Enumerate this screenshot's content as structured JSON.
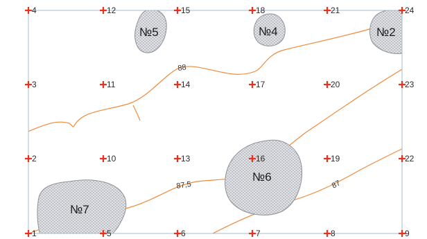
{
  "colors": {
    "background": "#ffffff",
    "frame": "#a9b8c8",
    "contour": "#f08a3c",
    "zone_fill": "#b9bcc2",
    "zone_stroke": "#8d9096",
    "zone_mesh": "#ffffff",
    "marker": "#e8321e"
  },
  "icons": {
    "survey_point": "red-plus-cross"
  },
  "points": [
    {
      "label": "1"
    },
    {
      "label": "2"
    },
    {
      "label": "3"
    },
    {
      "label": "4"
    },
    {
      "label": "5"
    },
    {
      "label": "10"
    },
    {
      "label": "11"
    },
    {
      "label": "12"
    },
    {
      "label": "6"
    },
    {
      "label": "13"
    },
    {
      "label": "14"
    },
    {
      "label": "15"
    },
    {
      "label": "7"
    },
    {
      "label": "16"
    },
    {
      "label": "17"
    },
    {
      "label": "18"
    },
    {
      "label": "8"
    },
    {
      "label": "19"
    },
    {
      "label": "20"
    },
    {
      "label": "21"
    },
    {
      "label": "9"
    },
    {
      "label": "22"
    },
    {
      "label": "23"
    },
    {
      "label": "24"
    }
  ],
  "zones": [
    {
      "label": "№5"
    },
    {
      "label": "№4"
    },
    {
      "label": "№2"
    },
    {
      "label": "№6"
    },
    {
      "label": "№7"
    }
  ],
  "contours": [
    {
      "value": "88"
    },
    {
      "value": "87,5"
    },
    {
      "value": "87"
    }
  ]
}
